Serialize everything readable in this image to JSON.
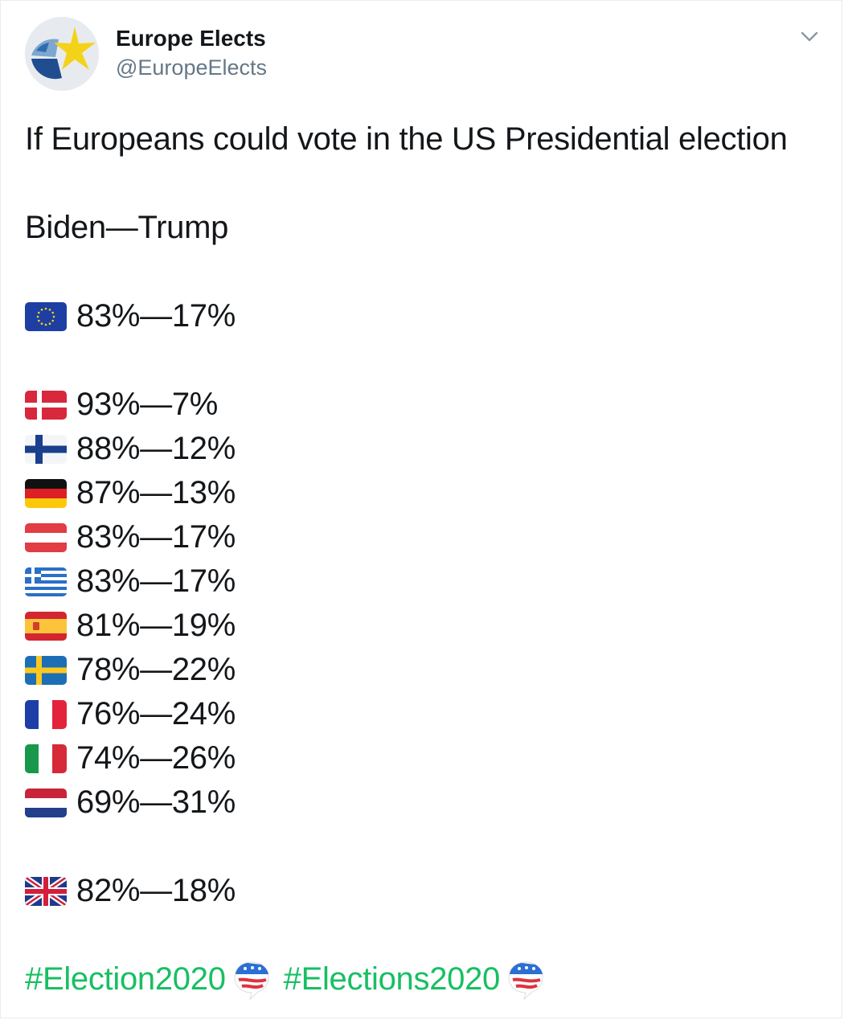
{
  "tweet": {
    "display_name": "Europe Elects",
    "handle": "@EuropeElects",
    "intro": "If Europeans could vote in the US Presidential election",
    "matchup": "Biden—Trump",
    "eu_result": {
      "flag": "eu-flag-icon",
      "value": "83%—17%"
    },
    "country_results": [
      {
        "flag": "denmark-flag-icon",
        "value": "93%—7%"
      },
      {
        "flag": "finland-flag-icon",
        "value": "88%—12%"
      },
      {
        "flag": "germany-flag-icon",
        "value": "87%—13%"
      },
      {
        "flag": "austria-flag-icon",
        "value": "83%—17%"
      },
      {
        "flag": "greece-flag-icon",
        "value": "83%—17%"
      },
      {
        "flag": "spain-flag-icon",
        "value": "81%—19%"
      },
      {
        "flag": "sweden-flag-icon",
        "value": "78%—22%"
      },
      {
        "flag": "france-flag-icon",
        "value": "76%—24%"
      },
      {
        "flag": "italy-flag-icon",
        "value": "74%—26%"
      },
      {
        "flag": "netherlands-flag-icon",
        "value": "69%—31%"
      }
    ],
    "uk_result": {
      "flag": "uk-flag-icon",
      "value": "82%—18%"
    },
    "hashtags": [
      "#Election2020",
      "#Elections2020"
    ],
    "hashtag_icon": "us-election-badge-icon",
    "colors": {
      "hashtag": "#17bf63",
      "handle": "#657786",
      "text": "#14171a"
    }
  }
}
